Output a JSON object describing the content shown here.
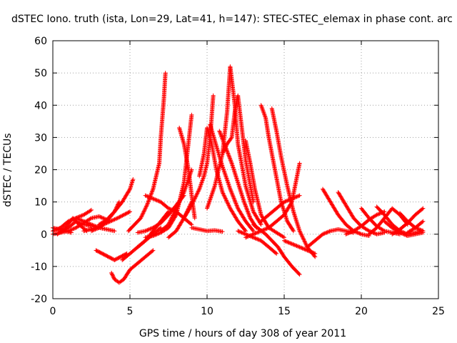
{
  "chart_data": {
    "type": "scatter",
    "title": "dSTEC Iono. truth (ista, Lon=29, Lat=41, h=147): STEC-STEC_elemax in phase cont. arc",
    "xlabel": "GPS time / hours of day 308 of year 2011",
    "ylabel": "dSTEC  / TECUs",
    "xlim": [
      0,
      25
    ],
    "ylim": [
      -20,
      60
    ],
    "xticks": [
      0,
      5,
      10,
      15,
      20,
      25
    ],
    "yticks": [
      -20,
      -10,
      0,
      10,
      20,
      30,
      40,
      50,
      60
    ],
    "grid": true,
    "marker": "plus",
    "series_color": "#ff0000",
    "series": [
      {
        "x": [
          0.0,
          0.5,
          1.0,
          1.5,
          2.0,
          2.5
        ],
        "y": [
          1.0,
          2.0,
          4.0,
          5.0,
          6.0,
          7.5
        ]
      },
      {
        "x": [
          0.0,
          0.4,
          0.8,
          1.2
        ],
        "y": [
          2.0,
          1.5,
          1.0,
          0.5
        ]
      },
      {
        "x": [
          0.0,
          0.5,
          1.0,
          1.5,
          2.0,
          2.5,
          3.0,
          3.5
        ],
        "y": [
          0.0,
          0.5,
          1.0,
          2.0,
          3.5,
          5.0,
          5.5,
          4.5
        ]
      },
      {
        "x": [
          0.3,
          0.8,
          1.3,
          1.7,
          2.2
        ],
        "y": [
          0.0,
          2.0,
          5.0,
          3.0,
          1.0
        ]
      },
      {
        "x": [
          0.5,
          1.0,
          1.5,
          2.0,
          2.5
        ],
        "y": [
          0.5,
          2.0,
          4.0,
          3.0,
          2.5
        ]
      },
      {
        "x": [
          1.5,
          2.0,
          2.5,
          3.0,
          3.5,
          4.0
        ],
        "y": [
          5.0,
          4.0,
          3.0,
          2.0,
          1.5,
          1.0
        ]
      },
      {
        "x": [
          2.0,
          2.8,
          3.5,
          4.2,
          5.0
        ],
        "y": [
          1.0,
          2.0,
          3.5,
          5.0,
          7.0
        ]
      },
      {
        "x": [
          2.5,
          3.0,
          3.5,
          4.0,
          4.3
        ],
        "y": [
          1.0,
          2.0,
          4.0,
          7.0,
          10.0
        ]
      },
      {
        "x": [
          3.0,
          3.5,
          4.0,
          4.5,
          5.0,
          5.2
        ],
        "y": [
          3.0,
          4.5,
          7.0,
          10.0,
          14.0,
          17.0
        ]
      },
      {
        "x": [
          2.8,
          3.2,
          3.6,
          4.0,
          4.4,
          4.8
        ],
        "y": [
          -5.0,
          -6.0,
          -7.0,
          -8.0,
          -7.0,
          -6.0
        ]
      },
      {
        "x": [
          3.8,
          4.0,
          4.3,
          4.6,
          5.0,
          5.5,
          6.0,
          6.5
        ],
        "y": [
          -12.0,
          -14.0,
          -15.0,
          -14.0,
          -11.0,
          -9.0,
          -7.0,
          -5.0
        ]
      },
      {
        "x": [
          4.5,
          5.0,
          5.5,
          6.0,
          6.5,
          7.0,
          7.5
        ],
        "y": [
          -8.0,
          -6.0,
          -4.0,
          -2.0,
          1.0,
          4.0,
          7.0
        ]
      },
      {
        "x": [
          4.9,
          5.3,
          5.7,
          6.1,
          6.5,
          6.9,
          7.0,
          7.2,
          7.3
        ],
        "y": [
          1.0,
          3.0,
          5.0,
          9.0,
          14.0,
          22.0,
          30.0,
          42.0,
          50.0
        ]
      },
      {
        "x": [
          5.5,
          6.0,
          6.5,
          7.0,
          7.5,
          8.0,
          8.5
        ],
        "y": [
          0.5,
          1.0,
          2.0,
          3.5,
          6.0,
          9.0,
          12.0
        ]
      },
      {
        "x": [
          6.0,
          6.5,
          7.0,
          7.5,
          8.0,
          8.5,
          9.0
        ],
        "y": [
          -1.0,
          -0.5,
          0.5,
          2.0,
          6.0,
          16.0,
          37.0
        ]
      },
      {
        "x": [
          5.5,
          6.0,
          6.5,
          7.0
        ],
        "y": [
          -4.0,
          -2.0,
          0.0,
          2.0
        ]
      },
      {
        "x": [
          6.0,
          6.5,
          7.0,
          7.5,
          8.0,
          8.5,
          9.0
        ],
        "y": [
          12.0,
          11.0,
          10.0,
          8.0,
          7.0,
          5.0,
          3.0
        ]
      },
      {
        "x": [
          7.0,
          7.5,
          8.0,
          8.5,
          9.0
        ],
        "y": [
          1.0,
          3.0,
          8.0,
          13.0,
          20.0
        ]
      },
      {
        "x": [
          7.5,
          8.0,
          8.5,
          9.0
        ],
        "y": [
          -1.0,
          1.0,
          5.0,
          10.0
        ]
      },
      {
        "x": [
          8.2,
          8.5,
          8.8,
          9.0,
          9.2
        ],
        "y": [
          33.0,
          28.0,
          20.0,
          12.0,
          5.0
        ]
      },
      {
        "x": [
          9.0,
          9.5,
          10.0,
          10.5,
          11.0
        ],
        "y": [
          2.0,
          1.5,
          1.0,
          1.2,
          0.8
        ]
      },
      {
        "x": [
          8.5,
          9.0,
          9.5,
          9.8,
          10.0,
          10.2,
          10.4
        ],
        "y": [
          5.0,
          9.0,
          14.0,
          18.0,
          22.0,
          30.0,
          43.0
        ]
      },
      {
        "x": [
          9.5,
          9.8,
          10.0,
          10.3,
          10.6,
          11.0,
          11.5,
          12.0,
          12.5
        ],
        "y": [
          18.0,
          25.0,
          33.0,
          28.0,
          20.0,
          13.0,
          8.0,
          4.0,
          1.0
        ]
      },
      {
        "x": [
          10.2,
          10.5,
          11.0,
          11.5,
          12.0,
          12.5,
          13.0
        ],
        "y": [
          34.0,
          29.0,
          21.0,
          14.0,
          8.0,
          4.0,
          1.0
        ]
      },
      {
        "x": [
          10.0,
          10.5,
          11.0,
          11.3,
          11.5,
          11.8,
          12.0,
          12.5,
          13.0,
          13.5
        ],
        "y": [
          8.0,
          15.0,
          25.0,
          38.0,
          52.0,
          40.0,
          28.0,
          15.0,
          7.0,
          3.0
        ]
      },
      {
        "x": [
          11.0,
          11.3,
          11.6,
          11.8,
          12.0,
          12.5,
          13.0
        ],
        "y": [
          25.0,
          28.0,
          30.0,
          38.0,
          43.0,
          23.0,
          10.0
        ]
      },
      {
        "x": [
          10.8,
          11.2,
          11.6,
          12.0,
          12.4,
          12.8,
          13.2
        ],
        "y": [
          32.0,
          27.0,
          22.0,
          16.0,
          10.0,
          5.0,
          2.0
        ]
      },
      {
        "x": [
          12.0,
          12.5,
          13.0,
          13.5,
          14.0,
          14.5
        ],
        "y": [
          1.0,
          0.0,
          -1.0,
          -2.0,
          -4.0,
          -6.0
        ]
      },
      {
        "x": [
          12.5,
          12.8,
          13.1,
          13.5,
          14.0,
          14.5,
          15.0
        ],
        "y": [
          29.0,
          22.0,
          14.0,
          6.0,
          2.0,
          0.5,
          -1.0
        ]
      },
      {
        "x": [
          13.0,
          13.4,
          13.8,
          14.2,
          14.6,
          15.0,
          15.5,
          16.0
        ],
        "y": [
          3.0,
          1.5,
          0.0,
          -2.0,
          -4.0,
          -7.0,
          -10.0,
          -12.5
        ]
      },
      {
        "x": [
          13.5,
          13.8,
          14.0,
          14.4,
          14.8,
          15.2,
          15.6
        ],
        "y": [
          40.0,
          36.0,
          30.0,
          20.0,
          10.0,
          4.0,
          1.0
        ]
      },
      {
        "x": [
          14.2,
          14.5,
          14.8,
          15.2,
          15.6,
          16.0,
          16.5,
          17.0
        ],
        "y": [
          39.0,
          32.0,
          24.0,
          15.0,
          7.0,
          1.0,
          -4.0,
          -7.0
        ]
      },
      {
        "x": [
          12.5,
          13.0,
          13.5,
          14.0,
          14.5,
          15.0,
          15.5,
          16.0
        ],
        "y": [
          -1.0,
          0.0,
          1.0,
          2.0,
          4.0,
          6.0,
          10.0,
          22.0
        ]
      },
      {
        "x": [
          13.5,
          14.0,
          14.5,
          15.0,
          15.5,
          16.0
        ],
        "y": [
          4.0,
          6.0,
          8.0,
          10.0,
          11.0,
          12.0
        ]
      },
      {
        "x": [
          16.5,
          17.0,
          17.5,
          18.0,
          18.5,
          19.0,
          19.5
        ],
        "y": [
          -4.0,
          -2.0,
          0.0,
          1.0,
          1.5,
          1.0,
          0.5
        ]
      },
      {
        "x": [
          17.5,
          18.0,
          18.5,
          19.0,
          19.5,
          20.0,
          20.5
        ],
        "y": [
          14.0,
          10.0,
          6.0,
          3.0,
          1.0,
          0.0,
          -0.5
        ]
      },
      {
        "x": [
          18.5,
          19.0,
          19.5,
          20.0,
          20.5,
          21.0,
          21.5
        ],
        "y": [
          13.0,
          9.0,
          5.0,
          2.5,
          1.0,
          0.0,
          0.5
        ]
      },
      {
        "x": [
          20.0,
          20.5,
          21.0,
          21.5,
          22.0,
          22.5
        ],
        "y": [
          8.0,
          5.0,
          2.5,
          1.0,
          0.5,
          0.0
        ]
      },
      {
        "x": [
          20.5,
          21.0,
          21.5,
          22.0,
          22.5,
          23.0
        ],
        "y": [
          0.0,
          2.0,
          5.0,
          8.0,
          6.0,
          3.0
        ]
      },
      {
        "x": [
          21.0,
          21.5,
          22.0,
          22.5,
          23.0,
          23.5,
          24.0
        ],
        "y": [
          8.5,
          6.0,
          3.0,
          1.0,
          0.0,
          0.5,
          1.0
        ]
      },
      {
        "x": [
          22.0,
          22.5,
          23.0,
          23.5,
          24.0
        ],
        "y": [
          0.0,
          1.5,
          3.5,
          6.0,
          8.0
        ]
      },
      {
        "x": [
          19.0,
          19.5,
          20.0,
          20.5,
          21.0,
          21.5
        ],
        "y": [
          0.0,
          1.0,
          2.5,
          4.5,
          6.0,
          7.0
        ]
      },
      {
        "x": [
          22.5,
          23.0,
          23.5,
          24.0
        ],
        "y": [
          6.5,
          4.0,
          2.0,
          1.0
        ]
      },
      {
        "x": [
          23.0,
          23.5,
          24.0
        ],
        "y": [
          0.5,
          2.0,
          4.0
        ]
      },
      {
        "x": [
          21.5,
          22.0,
          22.5,
          23.0,
          23.5,
          24.0
        ],
        "y": [
          4.0,
          2.0,
          0.5,
          -0.5,
          0.0,
          0.5
        ]
      },
      {
        "x": [
          15.0,
          15.5,
          16.0,
          16.5,
          17.0
        ],
        "y": [
          -2.0,
          -3.0,
          -4.0,
          -5.0,
          -6.0
        ]
      }
    ]
  }
}
